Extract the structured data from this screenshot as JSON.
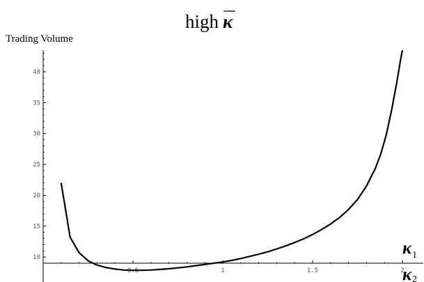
{
  "chart_data": {
    "type": "line",
    "title_prefix": "high",
    "title_symbol": "κ",
    "ylabel": "Trading Volume",
    "xlabel_numerator_symbol": "κ",
    "xlabel_numerator_subscript": "1",
    "xlabel_denominator_symbol": "κ",
    "xlabel_denominator_subscript": "2",
    "xlim": [
      0,
      2.05
    ],
    "ylim": [
      9,
      43.5
    ],
    "x_ticks": [
      0.5,
      1,
      1.5,
      2
    ],
    "x_tick_labels": [
      "0.5",
      "1",
      "1.5",
      "2"
    ],
    "y_ticks": [
      10,
      15,
      20,
      25,
      30,
      35,
      40
    ],
    "y_tick_labels": [
      "10",
      "15",
      "20",
      "25",
      "30",
      "35",
      "40"
    ],
    "grid": false,
    "series": [
      {
        "x": [
          0.1,
          0.15,
          0.2,
          0.25,
          0.3,
          0.35,
          0.4,
          0.45,
          0.5,
          0.55,
          0.6,
          0.65,
          0.7,
          0.75,
          0.8,
          0.85,
          0.9,
          0.95,
          1.0,
          1.05,
          1.1,
          1.15,
          1.2,
          1.25,
          1.3,
          1.35,
          1.4,
          1.45,
          1.5,
          1.55,
          1.6,
          1.65,
          1.7,
          1.75,
          1.8,
          1.85,
          1.88,
          1.91,
          1.94,
          1.97,
          1.99,
          2.0
        ],
        "y": [
          22.0,
          13.2,
          10.7,
          9.4,
          8.7,
          8.3,
          8.05,
          7.9,
          7.85,
          7.85,
          7.9,
          8.0,
          8.1,
          8.25,
          8.4,
          8.6,
          8.8,
          9.0,
          9.2,
          9.45,
          9.75,
          10.1,
          10.45,
          10.85,
          11.3,
          11.8,
          12.35,
          12.95,
          13.65,
          14.45,
          15.35,
          16.4,
          17.7,
          19.3,
          21.5,
          24.4,
          26.7,
          29.8,
          33.8,
          38.5,
          42.0,
          43.5
        ]
      }
    ]
  }
}
